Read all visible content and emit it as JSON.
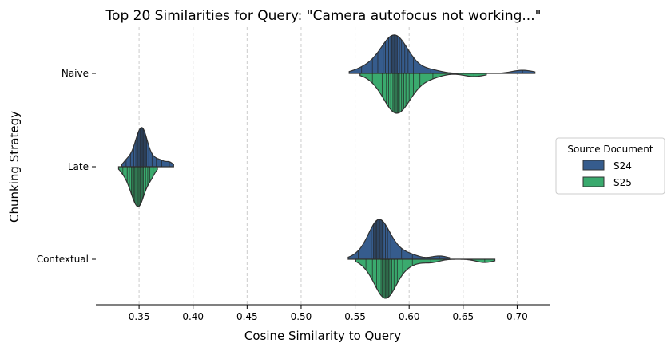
{
  "chart_data": {
    "type": "violin",
    "title": "Top 20 Similarities for Query: \"Camera autofocus not working...\"",
    "xlabel": "Cosine Similarity to Query",
    "ylabel": "Chunking Strategy",
    "xlim": [
      0.31,
      0.73
    ],
    "xticks": [
      "0.35",
      "0.40",
      "0.45",
      "0.50",
      "0.55",
      "0.60",
      "0.65",
      "0.70"
    ],
    "grid": "vertical dashed",
    "split": true,
    "inner": "stick",
    "categories": [
      "Naive",
      "Late",
      "Contextual"
    ],
    "legend": {
      "title": "Source Document",
      "position": "center-right"
    },
    "series": [
      {
        "name": "S24",
        "color": "#365c8d",
        "values": {
          "Naive": [
            0.556,
            0.566,
            0.571,
            0.576,
            0.578,
            0.581,
            0.583,
            0.584,
            0.585,
            0.586,
            0.587,
            0.588,
            0.589,
            0.591,
            0.593,
            0.596,
            0.599,
            0.604,
            0.62,
            0.705
          ],
          "Late": [
            0.338,
            0.342,
            0.345,
            0.347,
            0.348,
            0.349,
            0.35,
            0.351,
            0.352,
            0.353,
            0.353,
            0.354,
            0.355,
            0.356,
            0.357,
            0.359,
            0.362,
            0.366,
            0.371,
            0.378
          ],
          "Contextual": [
            0.553,
            0.561,
            0.565,
            0.567,
            0.568,
            0.569,
            0.57,
            0.571,
            0.572,
            0.573,
            0.574,
            0.575,
            0.576,
            0.578,
            0.58,
            0.583,
            0.587,
            0.593,
            0.603,
            0.628
          ]
        }
      },
      {
        "name": "S25",
        "color": "#3aaa6e",
        "values": {
          "Naive": [
            0.566,
            0.575,
            0.579,
            0.581,
            0.583,
            0.585,
            0.586,
            0.587,
            0.588,
            0.589,
            0.59,
            0.591,
            0.593,
            0.595,
            0.597,
            0.6,
            0.604,
            0.61,
            0.622,
            0.66
          ],
          "Late": [
            0.335,
            0.339,
            0.341,
            0.343,
            0.344,
            0.345,
            0.346,
            0.347,
            0.348,
            0.349,
            0.35,
            0.35,
            0.351,
            0.352,
            0.353,
            0.354,
            0.356,
            0.358,
            0.36,
            0.363
          ],
          "Contextual": [
            0.56,
            0.566,
            0.57,
            0.572,
            0.574,
            0.575,
            0.576,
            0.577,
            0.578,
            0.579,
            0.58,
            0.581,
            0.582,
            0.584,
            0.586,
            0.589,
            0.594,
            0.603,
            0.62,
            0.67
          ]
        }
      }
    ]
  }
}
